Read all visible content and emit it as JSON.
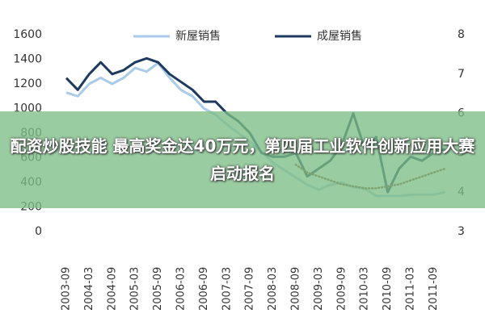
{
  "banner": "配资炒股技能 最高奖金达40万元，第四届工业软件创新应用大赛启动报名",
  "chart_data": {
    "type": "line",
    "categories": [
      "2003-09",
      null,
      "2004-03",
      null,
      "2004-09",
      null,
      "2005-03",
      null,
      "2005-09",
      null,
      "2006-03",
      null,
      "2006-09",
      null,
      "2007-03",
      null,
      "2007-09",
      null,
      "2008-03",
      null,
      "2008-09",
      null,
      "2009-03",
      null,
      "2009-09",
      null,
      "2010-03",
      null,
      "2010-09",
      null,
      "2011-03",
      null,
      "2011-09",
      null
    ],
    "series": [
      {
        "name": "新屋销售",
        "color": "#a9cbe8",
        "values": [
          1130,
          1100,
          1200,
          1250,
          1200,
          1250,
          1330,
          1300,
          1370,
          1250,
          1150,
          1100,
          1000,
          950,
          870,
          800,
          730,
          650,
          560,
          500,
          440,
          380,
          340,
          380,
          400,
          360,
          350,
          290,
          290,
          290,
          300,
          300,
          300,
          320
        ]
      },
      {
        "name": "成屋销售",
        "color": "#1f3a5f",
        "axis": "y2",
        "values": [
          6.9,
          6.6,
          7.0,
          7.3,
          7.0,
          7.1,
          7.3,
          7.4,
          7.3,
          7.0,
          6.8,
          6.6,
          6.3,
          6.3,
          6.0,
          5.8,
          5.5,
          5.0,
          4.9,
          4.9,
          5.0,
          4.4,
          4.6,
          4.8,
          5.2,
          6.0,
          5.1,
          5.4,
          4.0,
          4.6,
          4.9,
          4.8,
          5.0,
          5.1
        ]
      },
      {
        "color": "#7a4a2a",
        "axis": "y2",
        "line_style": "dotted",
        "values": [
          null,
          null,
          null,
          null,
          null,
          null,
          null,
          null,
          null,
          null,
          null,
          null,
          null,
          null,
          null,
          null,
          null,
          null,
          null,
          null,
          4.7,
          4.5,
          4.4,
          4.3,
          4.2,
          4.15,
          4.1,
          4.1,
          4.15,
          4.2,
          4.3,
          4.4,
          4.5,
          4.6
        ]
      }
    ],
    "ylim": [
      0,
      1600
    ],
    "yticks": [
      0,
      200,
      400,
      600,
      800,
      1000,
      1200,
      1400,
      1600
    ],
    "y2lim": [
      3,
      8
    ],
    "y2ticks": [
      3,
      4,
      5,
      6,
      7,
      8
    ],
    "grid": false
  }
}
